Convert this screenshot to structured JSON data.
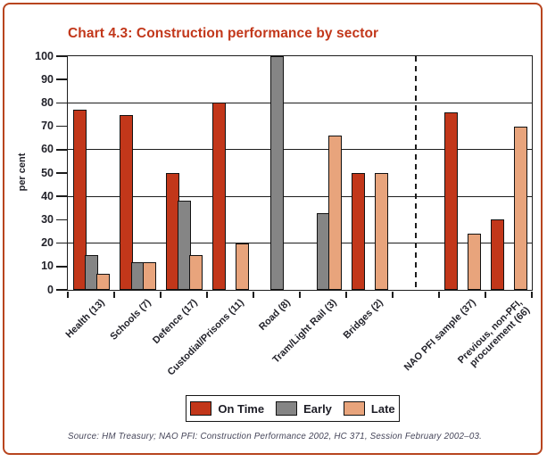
{
  "source": "Source: HM Treasury; NAO PFI: Construction Performance 2002, HC 371, Session February 2002–03.",
  "colors": {
    "accent_red": "#c2371a",
    "frame_border": "#b8451f",
    "axis_text": "#23232b"
  },
  "chart_data": {
    "type": "bar",
    "title": "Chart 4.3: Construction performance by sector",
    "xlabel": "",
    "ylabel": "per cent",
    "ylim": [
      0,
      100
    ],
    "yticks": [
      0,
      10,
      20,
      30,
      40,
      50,
      60,
      70,
      80,
      90,
      100
    ],
    "gridlines_at": [
      20,
      40,
      60,
      80
    ],
    "grid": true,
    "legend_position": "bottom",
    "legend": [
      "On Time",
      "Early",
      "Late"
    ],
    "series_colors": [
      "#c2371a",
      "#858585",
      "#e8a47c"
    ],
    "categories": [
      "Health (13)",
      "Schools (7)",
      "Defence (17)",
      "Custodial/Prisons (11)",
      "Road (8)",
      "Tram/Light Rail (3)",
      "Bridges (2)",
      "NAO PFI sample (37)",
      "Previous, non-PFI,\nprocurement (66)"
    ],
    "separator_after_category_index": 6,
    "series": [
      {
        "name": "On Time",
        "values": [
          77,
          75,
          50,
          80,
          null,
          null,
          50,
          76,
          30
        ]
      },
      {
        "name": "Early",
        "values": [
          15,
          12,
          38,
          null,
          100,
          33,
          null,
          null,
          null
        ]
      },
      {
        "name": "Late",
        "values": [
          7,
          12,
          15,
          20,
          null,
          66,
          50,
          24,
          70
        ]
      }
    ]
  }
}
